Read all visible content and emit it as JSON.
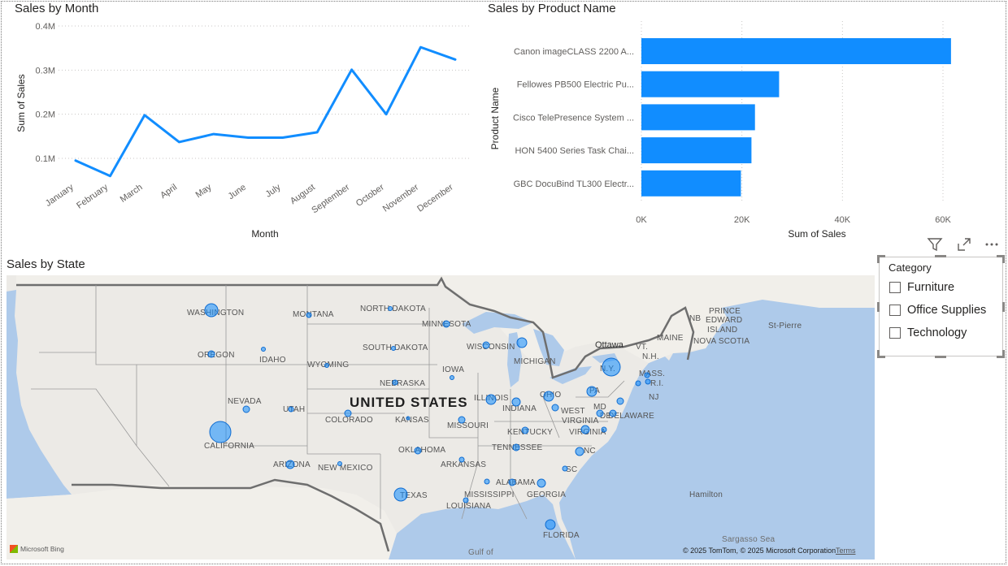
{
  "line_visual": {
    "title": "Sales by Month",
    "chart_data": {
      "type": "line",
      "title": "Sales by Month",
      "xlabel": "Month",
      "ylabel": "Sum of Sales",
      "x": [
        "January",
        "February",
        "March",
        "April",
        "May",
        "June",
        "July",
        "August",
        "September",
        "October",
        "November",
        "December"
      ],
      "values": [
        95000,
        60000,
        198000,
        137000,
        155000,
        147000,
        147000,
        159000,
        301000,
        200000,
        352000,
        324000
      ],
      "yticks": [
        "0.1M",
        "0.2M",
        "0.3M",
        "0.4M"
      ],
      "ytick_values": [
        100000,
        200000,
        300000,
        400000
      ],
      "ylim": [
        0,
        400000
      ],
      "grid": true,
      "color": "#118dff"
    }
  },
  "bar_visual": {
    "title": "Sales by Product Name",
    "chart_data": {
      "type": "bar",
      "orientation": "horizontal",
      "title": "Sales by Product Name",
      "xlabel": "Sum of Sales",
      "ylabel": "Product Name",
      "categories": [
        "Canon imageCLASS 2200 A...",
        "Fellowes PB500 Electric Pu...",
        "Cisco TelePresence System ...",
        "HON 5400 Series Task Chai...",
        "GBC DocuBind TL300 Electr..."
      ],
      "values": [
        61600,
        27400,
        22600,
        21900,
        19800
      ],
      "xticks": [
        "0K",
        "20K",
        "40K",
        "60K"
      ],
      "xtick_values": [
        0,
        20000,
        40000,
        60000
      ],
      "xlim": [
        0,
        65000
      ],
      "grid": true,
      "color": "#118dff"
    }
  },
  "map_visual": {
    "title": "Sales by State",
    "big_label": "UNITED STATES",
    "state_labels": [
      "WASHINGTON",
      "MONTANA",
      "NORTH DAKOTA",
      "MINNESOTA",
      "OREGON",
      "IDAHO",
      "SOUTH DAKOTA",
      "WISCONSIN",
      "MICHIGAN",
      "WYOMING",
      "IOWA",
      "NEBRASKA",
      "NEVADA",
      "UTAH",
      "ILLINOIS",
      "INDIANA",
      "OHIO",
      "PA",
      "COLORADO",
      "KANSAS",
      "MISSOURI",
      "WEST",
      "VIRGINIA",
      "MD",
      "DE",
      "DELAWARE",
      "KENTUCKY",
      "VIRGINIA",
      "CALIFORNIA",
      "TENNESSEE",
      "NC",
      "OKLAHOMA",
      "ARKANSAS",
      "ARIZONA",
      "NEW MEXICO",
      "SC",
      "ALABAMA",
      "GEORGIA",
      "MISSISSIPPI",
      "TEXAS",
      "LOUISIANA",
      "FLORIDA",
      "N.Y.",
      "VT.",
      "N.H.",
      "MAINE",
      "MASS.",
      "R.I.",
      "NJ",
      "NB",
      "PRINCE",
      "EDWARD",
      "ISLAND",
      "NOVA SCOTIA"
    ],
    "place_labels": [
      "Ottawa",
      "St-Pierre",
      "Hamilton",
      "Sargasso Sea",
      "Gulf of"
    ],
    "attribution": "© 2025 TomTom, © 2025 Microsoft Corporation",
    "terms": "Terms",
    "provider": "Microsoft Bing"
  },
  "toolbar": {
    "icons": [
      "filter-icon",
      "focus-mode-icon",
      "more-options-icon"
    ]
  },
  "slicer": {
    "title": "Category",
    "items": [
      "Furniture",
      "Office Supplies",
      "Technology"
    ]
  }
}
